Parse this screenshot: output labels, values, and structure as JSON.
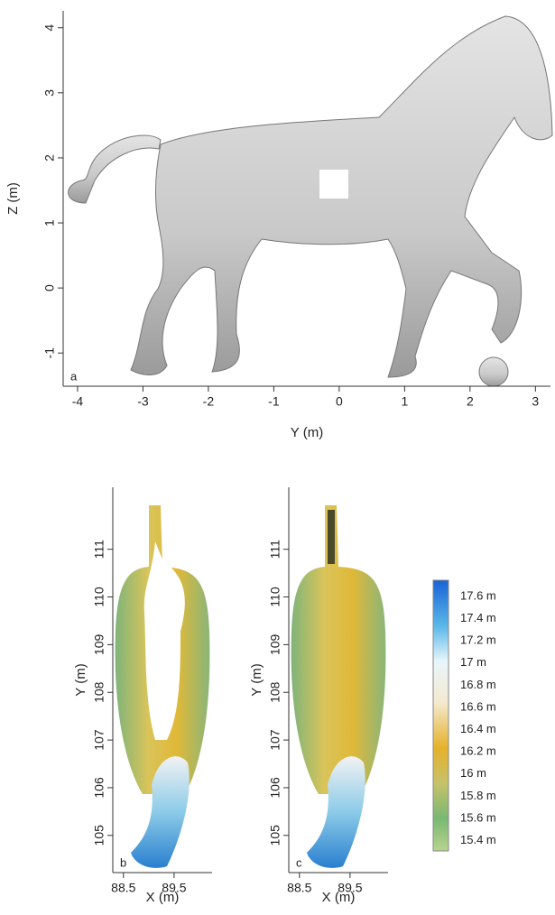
{
  "panel_a": {
    "label": "a",
    "x_label": "Y (m)",
    "y_label": "Z (m)",
    "xlim": [
      -4.22,
      3.23
    ],
    "ylim": [
      -1.51,
      4.26
    ],
    "xticks": [
      -4,
      -3,
      -2,
      -1,
      0,
      1,
      2,
      3
    ],
    "yticks": [
      -1,
      0,
      1,
      2,
      3,
      4
    ]
  },
  "panel_b": {
    "label": "b",
    "x_label": "X (m)",
    "y_label": "Y (m)",
    "xlim": [
      88.29,
      90.25
    ],
    "ylim": [
      104.22,
      112.3
    ],
    "xticks": [
      88.5,
      89.5
    ],
    "yticks": [
      105,
      106,
      107,
      108,
      109,
      110,
      111
    ]
  },
  "panel_c": {
    "label": "c",
    "x_label": "X (m)",
    "y_label": "Y (m)",
    "xlim": [
      88.29,
      90.25
    ],
    "ylim": [
      104.22,
      112.3
    ],
    "xticks": [
      88.5,
      89.5
    ],
    "yticks": [
      105,
      106,
      107,
      108,
      109,
      110,
      111
    ]
  },
  "colorbar": {
    "labels": [
      "17.6 m",
      "17.4 m",
      "17.2 m",
      "17 m",
      "16.8 m",
      "16.6 m",
      "16.4 m",
      "16.2 m",
      "16 m",
      "15.8 m",
      "15.6 m",
      "15.4 m"
    ]
  }
}
